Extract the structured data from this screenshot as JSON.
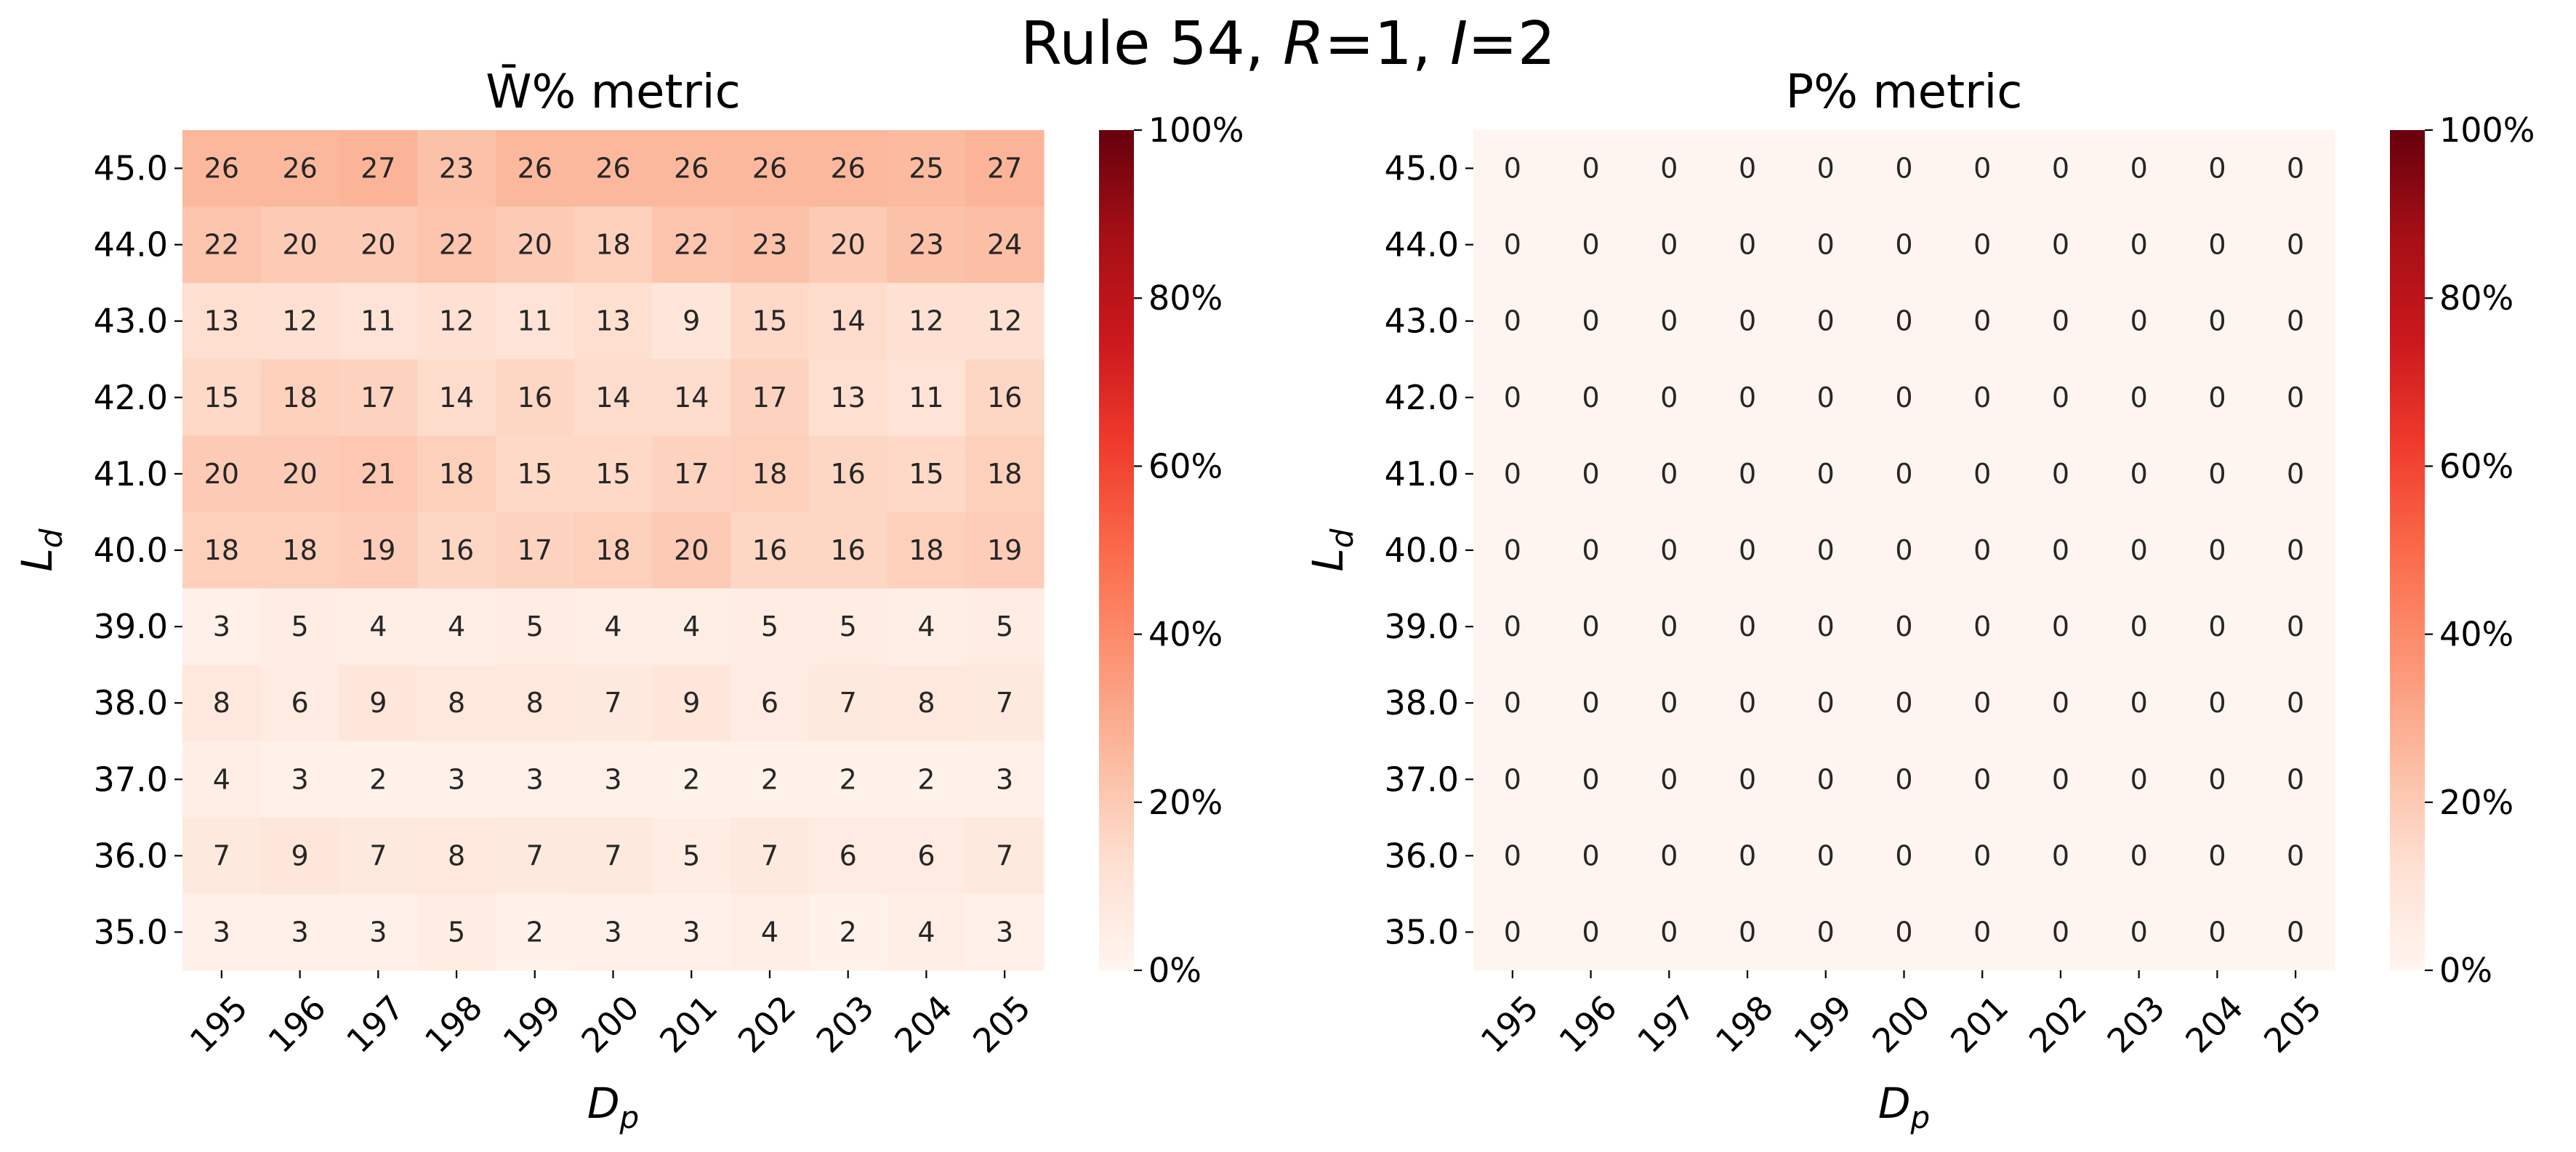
{
  "figure": {
    "suptitle_parts": [
      {
        "text": "Rule 54, ",
        "italic": false
      },
      {
        "text": "R",
        "italic": true
      },
      {
        "text": "=1, ",
        "italic": false
      },
      {
        "text": "I",
        "italic": true
      },
      {
        "text": "=2",
        "italic": false
      }
    ]
  },
  "colorbar": {
    "tick_labels": [
      "0%",
      "20%",
      "40%",
      "60%",
      "80%",
      "100%"
    ],
    "tick_values": [
      0,
      20,
      40,
      60,
      80,
      100
    ],
    "range": [
      0,
      100
    ],
    "colormap": "Reds",
    "stops": [
      "#fff5f0",
      "#fee0d2",
      "#fcbba1",
      "#fc9272",
      "#fb6a4a",
      "#ef3b2c",
      "#cb181d",
      "#a50f15",
      "#67000d"
    ]
  },
  "chart_data": [
    {
      "type": "heatmap",
      "title": "W̄% metric",
      "xlabel_base": "D",
      "xlabel_sub": "p",
      "ylabel_base": "L",
      "ylabel_sub": "d",
      "x": [
        "195",
        "196",
        "197",
        "198",
        "199",
        "200",
        "201",
        "202",
        "203",
        "204",
        "205"
      ],
      "y": [
        "45.0",
        "44.0",
        "43.0",
        "42.0",
        "41.0",
        "40.0",
        "39.0",
        "38.0",
        "37.0",
        "36.0",
        "35.0"
      ],
      "values": [
        [
          26,
          26,
          27,
          23,
          26,
          26,
          26,
          26,
          26,
          25,
          27
        ],
        [
          22,
          20,
          20,
          22,
          20,
          18,
          22,
          23,
          20,
          23,
          24
        ],
        [
          13,
          12,
          11,
          12,
          11,
          13,
          9,
          15,
          14,
          12,
          12
        ],
        [
          15,
          18,
          17,
          14,
          16,
          14,
          14,
          17,
          13,
          11,
          16
        ],
        [
          20,
          20,
          21,
          18,
          15,
          15,
          17,
          18,
          16,
          15,
          18
        ],
        [
          18,
          18,
          19,
          16,
          17,
          18,
          20,
          16,
          16,
          18,
          19
        ],
        [
          3,
          5,
          4,
          4,
          5,
          4,
          4,
          5,
          5,
          4,
          5
        ],
        [
          8,
          6,
          9,
          8,
          8,
          7,
          9,
          6,
          7,
          8,
          7
        ],
        [
          4,
          3,
          2,
          3,
          3,
          3,
          2,
          2,
          2,
          2,
          3
        ],
        [
          7,
          9,
          7,
          8,
          7,
          7,
          5,
          7,
          6,
          6,
          7
        ],
        [
          3,
          3,
          3,
          5,
          2,
          3,
          3,
          4,
          2,
          4,
          3
        ]
      ],
      "vmin": 0,
      "vmax": 100
    },
    {
      "type": "heatmap",
      "title": "P% metric",
      "xlabel_base": "D",
      "xlabel_sub": "p",
      "ylabel_base": "L",
      "ylabel_sub": "d",
      "x": [
        "195",
        "196",
        "197",
        "198",
        "199",
        "200",
        "201",
        "202",
        "203",
        "204",
        "205"
      ],
      "y": [
        "45.0",
        "44.0",
        "43.0",
        "42.0",
        "41.0",
        "40.0",
        "39.0",
        "38.0",
        "37.0",
        "36.0",
        "35.0"
      ],
      "values": [
        [
          0,
          0,
          0,
          0,
          0,
          0,
          0,
          0,
          0,
          0,
          0
        ],
        [
          0,
          0,
          0,
          0,
          0,
          0,
          0,
          0,
          0,
          0,
          0
        ],
        [
          0,
          0,
          0,
          0,
          0,
          0,
          0,
          0,
          0,
          0,
          0
        ],
        [
          0,
          0,
          0,
          0,
          0,
          0,
          0,
          0,
          0,
          0,
          0
        ],
        [
          0,
          0,
          0,
          0,
          0,
          0,
          0,
          0,
          0,
          0,
          0
        ],
        [
          0,
          0,
          0,
          0,
          0,
          0,
          0,
          0,
          0,
          0,
          0
        ],
        [
          0,
          0,
          0,
          0,
          0,
          0,
          0,
          0,
          0,
          0,
          0
        ],
        [
          0,
          0,
          0,
          0,
          0,
          0,
          0,
          0,
          0,
          0,
          0
        ],
        [
          0,
          0,
          0,
          0,
          0,
          0,
          0,
          0,
          0,
          0,
          0
        ],
        [
          0,
          0,
          0,
          0,
          0,
          0,
          0,
          0,
          0,
          0,
          0
        ],
        [
          0,
          0,
          0,
          0,
          0,
          0,
          0,
          0,
          0,
          0,
          0
        ]
      ],
      "vmin": 0,
      "vmax": 100
    }
  ]
}
